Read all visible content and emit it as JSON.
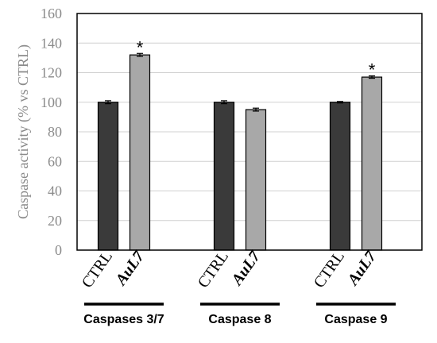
{
  "chart_data": {
    "type": "bar",
    "title": "",
    "xlabel": "",
    "ylabel": "Caspase activity (% vs CTRL)",
    "ylim": [
      0,
      160
    ],
    "yticks": [
      0,
      20,
      40,
      60,
      80,
      100,
      120,
      140,
      160
    ],
    "grid": true,
    "groups": [
      {
        "label": "Caspases 3/7",
        "bars": [
          {
            "category": "CTRL",
            "value": 100,
            "error": 1,
            "significant": false
          },
          {
            "category": "AuL7",
            "value": 132,
            "error": 1,
            "significant": true
          }
        ]
      },
      {
        "label": "Caspase 8",
        "bars": [
          {
            "category": "CTRL",
            "value": 100,
            "error": 1,
            "significant": false
          },
          {
            "category": "AuL7",
            "value": 95,
            "error": 1,
            "significant": false
          }
        ]
      },
      {
        "label": "Caspase 9",
        "bars": [
          {
            "category": "CTRL",
            "value": 100,
            "error": 0.5,
            "significant": false
          },
          {
            "category": "AuL7",
            "value": 117,
            "error": 0.8,
            "significant": true
          }
        ]
      }
    ],
    "significance_marker": "*",
    "colors": {
      "CTRL": "#3a3a3a",
      "AuL7": "#a8a8a8",
      "grid": "#d0d0d0",
      "axis_text": "#8a8a8a"
    }
  }
}
